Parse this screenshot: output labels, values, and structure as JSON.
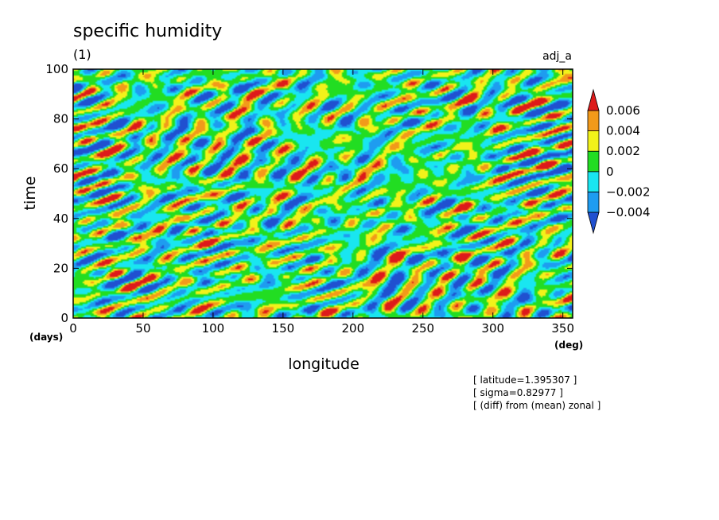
{
  "chart_data": {
    "type": "heatmap",
    "title": "specific humidity",
    "subtitle": "(1)",
    "run_label": "adj_a",
    "xlabel": "longitude",
    "ylabel": "time",
    "x_unit": "(deg)",
    "y_unit": "(days)",
    "xlim": [
      0,
      357
    ],
    "ylim": [
      0,
      100
    ],
    "x_ticks": [
      0,
      50,
      100,
      150,
      200,
      250,
      300,
      350
    ],
    "y_ticks": [
      0,
      20,
      40,
      60,
      80,
      100
    ],
    "colorbar": {
      "levels": [
        -0.004,
        -0.002,
        0,
        0.002,
        0.004,
        0.006
      ],
      "labels": [
        "0.006",
        "0.004",
        "0.002",
        "0",
        "−0.002",
        "−0.004"
      ],
      "colors": [
        "#2050d0",
        "#1e9cf0",
        "#19e6f0",
        "#22dd22",
        "#f2f21a",
        "#f29a1a",
        "#dd1a1a"
      ],
      "extend": "both"
    },
    "annotations": [
      "[ latitude=1.395307 ]",
      "[ sigma=0.82977 ]",
      "[ (diff) from (mean) zonal ]"
    ],
    "field_note": "dense small-scale anomalies, mostly green/cyan with embedded blue streaks tilted downward to the right and scattered yellow/orange/red blobs"
  }
}
